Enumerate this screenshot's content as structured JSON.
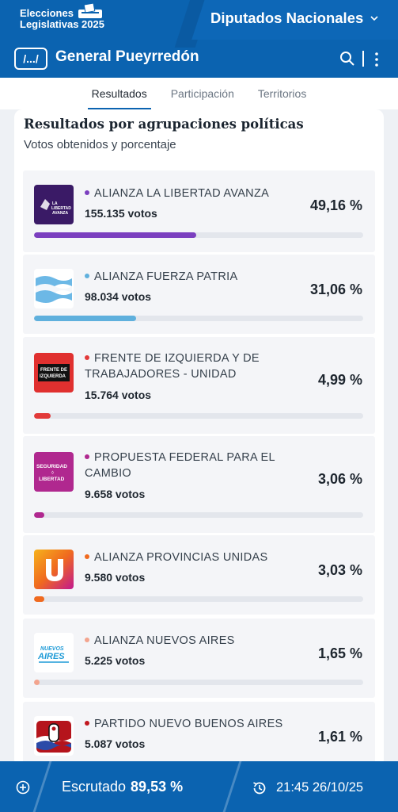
{
  "header": {
    "brand_line1": "Elecciones",
    "brand_line2": "Legislativas 2025",
    "section": "Diputados Nacionales",
    "menu_label": "/.../",
    "place": "General Pueyrredón",
    "accent": "#0b63b0"
  },
  "tabs": [
    {
      "label": "Resultados",
      "active": true
    },
    {
      "label": "Participación",
      "active": false
    },
    {
      "label": "Territorios",
      "active": false
    }
  ],
  "card": {
    "title": "Resultados por agrupaciones políticas",
    "subtitle": "Votos obtenidos y porcentaje"
  },
  "results": [
    {
      "name": "ALIANZA LA LIBERTAD AVANZA",
      "votes": "155.135 votos",
      "pct": "49,16 %",
      "share": 49.16,
      "color": "#7b3fbf",
      "logo": "la-libertad-avanza-logo",
      "logo_text": "LA LIBERTAD AVANZA"
    },
    {
      "name": "ALIANZA FUERZA PATRIA",
      "votes": "98.034 votos",
      "pct": "31,06 %",
      "share": 31.06,
      "color": "#5fb0dd",
      "logo": "fuerza-patria-flag-logo",
      "logo_text": ""
    },
    {
      "name": "FRENTE DE IZQUIERDA Y DE TRABAJADORES - UNIDAD",
      "votes": "15.764 votos",
      "pct": "4,99 %",
      "share": 4.99,
      "color": "#e23a3a",
      "logo": "frente-izquierda-logo",
      "logo_text": "FRENTE DE IZQUIERDA"
    },
    {
      "name": "PROPUESTA FEDERAL PARA EL CAMBIO",
      "votes": "9.658 votos",
      "pct": "3,06 %",
      "share": 3.06,
      "color": "#b0288f",
      "logo": "seguridad-libertad-logo",
      "logo_text": "SEGURIDAD LIBERTAD"
    },
    {
      "name": "ALIANZA PROVINCIAS UNIDAS",
      "votes": "9.580 votos",
      "pct": "3,03 %",
      "share": 3.03,
      "color": "#f06a1f",
      "logo": "provincias-unidas-u-logo",
      "logo_text": "U"
    },
    {
      "name": "ALIANZA NUEVOS AIRES",
      "votes": "5.225 votos",
      "pct": "1,65 %",
      "share": 1.65,
      "color": "#f3a48e",
      "logo": "nuevos-aires-logo",
      "logo_text": "NUEVOS AIRES"
    },
    {
      "name": "PARTIDO NUEVO BUENOS AIRES",
      "votes": "5.087 votos",
      "pct": "1,61 %",
      "share": 1.61,
      "color": "#c2181f",
      "logo": "nuevo-buenos-aires-shield-logo",
      "logo_text": ""
    }
  ],
  "footer": {
    "scrutinized_label": "Escrutado",
    "scrutinized_value": "89,53 %",
    "timestamp": "21:45 26/10/25"
  }
}
